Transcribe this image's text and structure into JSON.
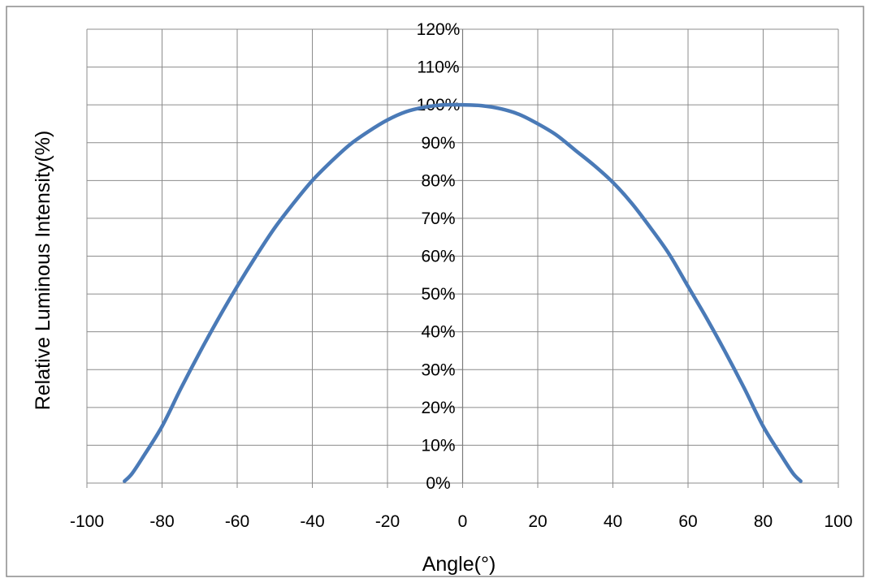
{
  "chart_data": {
    "type": "line",
    "title": "",
    "xlabel": "Angle(°)",
    "ylabel": "Relative Luminous Intensity(%)",
    "xlim": [
      -100,
      100
    ],
    "ylim": [
      0,
      120
    ],
    "x_ticks": [
      -100,
      -80,
      -60,
      -40,
      -20,
      0,
      20,
      40,
      60,
      80,
      100
    ],
    "y_ticks": [
      0,
      10,
      20,
      30,
      40,
      50,
      60,
      70,
      80,
      90,
      100,
      110,
      120
    ],
    "x_tick_labels": [
      "-100",
      "-80",
      "-60",
      "-40",
      "-20",
      "0",
      "20",
      "40",
      "60",
      "80",
      "100"
    ],
    "y_tick_labels": [
      "0%",
      "10%",
      "20%",
      "30%",
      "40%",
      "50%",
      "60%",
      "70%",
      "80%",
      "90%",
      "100%",
      "110%",
      "120%"
    ],
    "grid": true,
    "legend": "none",
    "series": [
      {
        "color": "#4a7ab7",
        "x": [
          -90,
          -88,
          -85,
          -80,
          -75,
          -70,
          -65,
          -60,
          -55,
          -50,
          -45,
          -40,
          -35,
          -30,
          -25,
          -20,
          -15,
          -10,
          -5,
          0,
          5,
          10,
          15,
          20,
          25,
          30,
          35,
          40,
          45,
          50,
          55,
          60,
          65,
          70,
          75,
          80,
          85,
          88,
          90
        ],
        "y": [
          0.5,
          2.5,
          7,
          15,
          25,
          34.5,
          43.5,
          52,
          60,
          67.5,
          74,
          80,
          85,
          89.5,
          93,
          96,
          98.2,
          99.4,
          100,
          100,
          99.8,
          99,
          97.5,
          95,
          92,
          88,
          84,
          79.5,
          74,
          67.5,
          60.5,
          52,
          43.5,
          34.5,
          25,
          15,
          7,
          2.5,
          0.5
        ]
      }
    ]
  }
}
